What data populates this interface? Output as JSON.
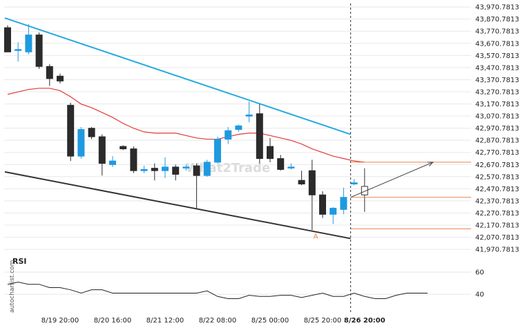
{
  "chart_data": {
    "type": "candlestick",
    "y_ticks": [
      "43,970.7813",
      "43,870.7813",
      "43,770.7813",
      "43,670.7813",
      "43,570.7813",
      "43,470.7813",
      "43,370.7813",
      "43,270.7813",
      "43,170.7813",
      "43,070.7813",
      "42,970.7813",
      "42,870.7813",
      "42,770.7813",
      "42,670.7813",
      "42,570.7813",
      "42,470.7813",
      "42,370.7813",
      "42,270.7813",
      "42,170.7813",
      "42,070.7813",
      "41,970.7813"
    ],
    "y_tick_values": [
      43970.7813,
      43870.7813,
      43770.7813,
      43670.7813,
      43570.7813,
      43470.7813,
      43370.7813,
      43270.7813,
      43170.7813,
      43070.7813,
      42970.7813,
      42870.7813,
      42770.7813,
      42670.7813,
      42570.7813,
      42470.7813,
      42370.7813,
      42270.7813,
      42170.7813,
      42070.7813,
      41970.7813
    ],
    "ylim": [
      41920,
      44000
    ],
    "x_tick_labels": [
      {
        "label": "8/19 20:00",
        "index": 5
      },
      {
        "label": "8/20 16:00",
        "index": 10
      },
      {
        "label": "8/21 12:00",
        "index": 15
      },
      {
        "label": "8/22 08:00",
        "index": 20
      },
      {
        "label": "8/25 00:00",
        "index": 25
      },
      {
        "label": "8/25 20:00",
        "index": 30
      },
      {
        "label": "8/26 20:00",
        "index": 34,
        "bold": true
      }
    ],
    "candles": [
      {
        "o": 43800,
        "h": 43820,
        "l": 43600,
        "c": 43600
      },
      {
        "o": 43620,
        "h": 43680,
        "l": 43520,
        "c": 43620
      },
      {
        "o": 43600,
        "h": 43830,
        "l": 43580,
        "c": 43740
      },
      {
        "o": 43740,
        "h": 43760,
        "l": 43460,
        "c": 43480
      },
      {
        "o": 43480,
        "h": 43500,
        "l": 43320,
        "c": 43380
      },
      {
        "o": 43400,
        "h": 43420,
        "l": 43340,
        "c": 43360
      },
      {
        "o": 43160,
        "h": 43180,
        "l": 42700,
        "c": 42740
      },
      {
        "o": 42740,
        "h": 42980,
        "l": 42720,
        "c": 42960
      },
      {
        "o": 42970,
        "h": 42980,
        "l": 42880,
        "c": 42900
      },
      {
        "o": 42900,
        "h": 42920,
        "l": 42580,
        "c": 42680
      },
      {
        "o": 42670,
        "h": 42740,
        "l": 42650,
        "c": 42700
      },
      {
        "o": 42820,
        "h": 42830,
        "l": 42790,
        "c": 42800
      },
      {
        "o": 42800,
        "h": 42820,
        "l": 42600,
        "c": 42620
      },
      {
        "o": 42620,
        "h": 42660,
        "l": 42600,
        "c": 42630
      },
      {
        "o": 42640,
        "h": 42680,
        "l": 42540,
        "c": 42620
      },
      {
        "o": 42620,
        "h": 42730,
        "l": 42560,
        "c": 42650
      },
      {
        "o": 42650,
        "h": 42670,
        "l": 42540,
        "c": 42590
      },
      {
        "o": 42650,
        "h": 42670,
        "l": 42620,
        "c": 42650
      },
      {
        "o": 42660,
        "h": 42680,
        "l": 42310,
        "c": 42580
      },
      {
        "o": 42580,
        "h": 42710,
        "l": 42570,
        "c": 42690
      },
      {
        "o": 42690,
        "h": 42900,
        "l": 42680,
        "c": 42880
      },
      {
        "o": 42880,
        "h": 42980,
        "l": 42840,
        "c": 42950
      },
      {
        "o": 42960,
        "h": 43000,
        "l": 42940,
        "c": 42990
      },
      {
        "o": 43070,
        "h": 43190,
        "l": 43020,
        "c": 43080
      },
      {
        "o": 43090,
        "h": 43170,
        "l": 42680,
        "c": 42720
      },
      {
        "o": 42820,
        "h": 42890,
        "l": 42690,
        "c": 42720
      },
      {
        "o": 42720,
        "h": 42750,
        "l": 42620,
        "c": 42630
      },
      {
        "o": 42650,
        "h": 42680,
        "l": 42630,
        "c": 42650
      },
      {
        "o": 42540,
        "h": 42620,
        "l": 42500,
        "c": 42510
      },
      {
        "o": 42620,
        "h": 42710,
        "l": 42130,
        "c": 42420
      },
      {
        "o": 42420,
        "h": 42450,
        "l": 42230,
        "c": 42260
      },
      {
        "o": 42260,
        "h": 42320,
        "l": 42180,
        "c": 42310
      },
      {
        "o": 42300,
        "h": 42480,
        "l": 42260,
        "c": 42400
      },
      {
        "o": 42510,
        "h": 42550,
        "l": 42500,
        "c": 42520
      },
      {
        "o": 42420,
        "h": 42640,
        "l": 42280,
        "c": 42490
      }
    ],
    "pattern": {
      "upper_line": {
        "start_index": 0,
        "start_value": 43880,
        "end_index": 33,
        "end_value": 42920
      },
      "lower_line": {
        "start_index": 0,
        "start_value": 42610,
        "end_index": 33,
        "end_value": 42060
      },
      "moving_average": [
        43250,
        43270,
        43290,
        43300,
        43300,
        43280,
        43230,
        43170,
        43140,
        43100,
        43060,
        43010,
        42970,
        42940,
        42930,
        42930,
        42930,
        42910,
        42890,
        42880,
        42880,
        42900,
        42920,
        42930,
        42930,
        42910,
        42890,
        42870,
        42840,
        42800,
        42770,
        42740,
        42720,
        42700,
        42690
      ],
      "levels": [
        42690,
        42400,
        42140
      ],
      "projection": {
        "from_index": 33,
        "from_value": 42400,
        "to_index": 39,
        "to_value": 42690
      },
      "annotation": "A"
    },
    "rsi": {
      "label": "RSI",
      "ticks": [
        60,
        40
      ],
      "ylim": [
        25,
        72
      ],
      "values": [
        49,
        51,
        49,
        49,
        46,
        46,
        44,
        41,
        44,
        44,
        41,
        41,
        41,
        41,
        41,
        41,
        41,
        41,
        41,
        43,
        38,
        36,
        36,
        39,
        38,
        38,
        39,
        39,
        37,
        39,
        41,
        38,
        38,
        41,
        38,
        36,
        36,
        39,
        41,
        41,
        41
      ]
    }
  },
  "watermark": "What2Trade",
  "side_credit": "autochartist.com",
  "colors": {
    "bull": "#1f9ae0",
    "bear": "#2b2b2b",
    "upper_line": "#28a8e0",
    "lower_line": "#333333",
    "moving_average": "#e23a3a",
    "levels": "#e8864a",
    "projection": "#444444",
    "grid": "#e8e8e8"
  }
}
